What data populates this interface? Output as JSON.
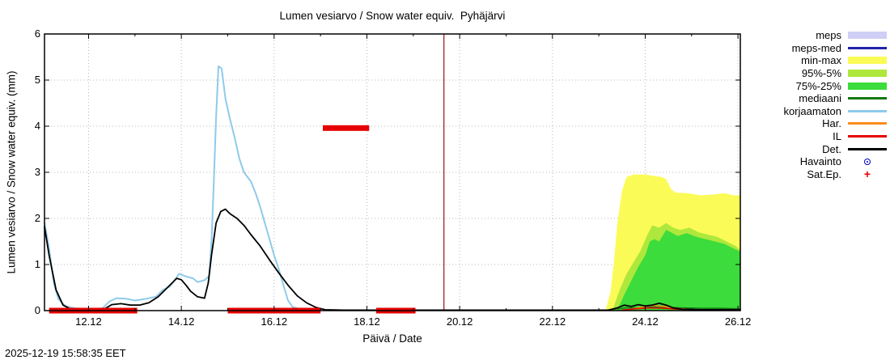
{
  "footer": {
    "timestamp": "2025-12-19 15:58:35 EET"
  },
  "chart_data": {
    "type": "line",
    "title": "Lumen vesiarvo / Snow water equiv.  Pyhäjärvi",
    "xlabel": "Päivä / Date",
    "ylabel": "Lumen vesiarvo / Snow water equiv. (mm)",
    "xlim": [
      11.05,
      26.05
    ],
    "ylim": [
      0,
      6
    ],
    "grid": true,
    "legend_position": "right-outside",
    "xticks": [
      {
        "v": 12,
        "label": "12.12"
      },
      {
        "v": 14,
        "label": "14.12"
      },
      {
        "v": 16,
        "label": "16.12"
      },
      {
        "v": 18,
        "label": "18.12"
      },
      {
        "v": 20,
        "label": "20.12"
      },
      {
        "v": 22,
        "label": "22.12"
      },
      {
        "v": 24,
        "label": "24.12"
      },
      {
        "v": 26,
        "label": "26.12"
      }
    ],
    "yticks": [
      0,
      1,
      2,
      3,
      4,
      5,
      6
    ],
    "now_line": {
      "x": 19.66,
      "color": "#a03232"
    },
    "areas": [
      {
        "name": "min-max",
        "color": "#fbfb57",
        "points": [
          [
            23.15,
            0.02
          ],
          [
            23.25,
            0.4
          ],
          [
            23.32,
            1.0
          ],
          [
            23.4,
            1.9
          ],
          [
            23.5,
            2.6
          ],
          [
            23.6,
            2.9
          ],
          [
            23.75,
            2.95
          ],
          [
            24.0,
            2.95
          ],
          [
            24.2,
            2.92
          ],
          [
            24.35,
            2.9
          ],
          [
            24.45,
            2.85
          ],
          [
            24.55,
            2.65
          ],
          [
            24.65,
            2.56
          ],
          [
            24.9,
            2.55
          ],
          [
            25.2,
            2.5
          ],
          [
            25.5,
            2.52
          ],
          [
            25.7,
            2.55
          ],
          [
            25.9,
            2.5
          ],
          [
            26.05,
            2.5
          ]
        ]
      },
      {
        "name": "95%-5%",
        "color": "#aee83c",
        "points": [
          [
            23.3,
            0.02
          ],
          [
            23.45,
            0.45
          ],
          [
            23.6,
            0.8
          ],
          [
            23.75,
            1.05
          ],
          [
            23.9,
            1.3
          ],
          [
            24.05,
            1.65
          ],
          [
            24.15,
            1.85
          ],
          [
            24.3,
            1.8
          ],
          [
            24.45,
            1.9
          ],
          [
            24.6,
            1.8
          ],
          [
            24.75,
            1.75
          ],
          [
            24.95,
            1.8
          ],
          [
            25.15,
            1.7
          ],
          [
            25.35,
            1.65
          ],
          [
            25.55,
            1.6
          ],
          [
            25.75,
            1.5
          ],
          [
            25.95,
            1.4
          ],
          [
            26.05,
            1.32
          ]
        ]
      },
      {
        "name": "75%-25%",
        "color": "#3bdc3b",
        "points": [
          [
            23.4,
            0.02
          ],
          [
            23.55,
            0.35
          ],
          [
            23.7,
            0.65
          ],
          [
            23.85,
            0.95
          ],
          [
            24.0,
            1.2
          ],
          [
            24.1,
            1.5
          ],
          [
            24.2,
            1.55
          ],
          [
            24.3,
            1.5
          ],
          [
            24.45,
            1.75
          ],
          [
            24.55,
            1.7
          ],
          [
            24.7,
            1.62
          ],
          [
            24.9,
            1.68
          ],
          [
            25.1,
            1.6
          ],
          [
            25.3,
            1.55
          ],
          [
            25.5,
            1.5
          ],
          [
            25.7,
            1.45
          ],
          [
            25.9,
            1.35
          ],
          [
            26.05,
            1.28
          ]
        ]
      }
    ],
    "series": [
      {
        "name": "korjaamaton",
        "color": "#8fcaea",
        "width": 2,
        "points": [
          [
            11.05,
            1.9
          ],
          [
            11.15,
            1.35
          ],
          [
            11.25,
            0.6
          ],
          [
            11.35,
            0.25
          ],
          [
            11.5,
            0.1
          ],
          [
            11.7,
            0.05
          ],
          [
            12.0,
            0.03
          ],
          [
            12.3,
            0.05
          ],
          [
            12.45,
            0.2
          ],
          [
            12.6,
            0.27
          ],
          [
            12.8,
            0.26
          ],
          [
            13.0,
            0.22
          ],
          [
            13.2,
            0.25
          ],
          [
            13.45,
            0.3
          ],
          [
            13.6,
            0.45
          ],
          [
            13.75,
            0.52
          ],
          [
            13.85,
            0.65
          ],
          [
            13.95,
            0.8
          ],
          [
            14.1,
            0.74
          ],
          [
            14.25,
            0.7
          ],
          [
            14.35,
            0.62
          ],
          [
            14.5,
            0.66
          ],
          [
            14.6,
            0.75
          ],
          [
            14.65,
            1.5
          ],
          [
            14.7,
            2.8
          ],
          [
            14.75,
            4.2
          ],
          [
            14.8,
            5.3
          ],
          [
            14.87,
            5.25
          ],
          [
            14.95,
            4.6
          ],
          [
            15.05,
            4.15
          ],
          [
            15.15,
            3.75
          ],
          [
            15.25,
            3.3
          ],
          [
            15.35,
            3.0
          ],
          [
            15.5,
            2.8
          ],
          [
            15.6,
            2.55
          ],
          [
            15.7,
            2.25
          ],
          [
            15.8,
            1.9
          ],
          [
            15.9,
            1.55
          ],
          [
            16.0,
            1.2
          ],
          [
            16.1,
            0.9
          ],
          [
            16.2,
            0.55
          ],
          [
            16.3,
            0.22
          ],
          [
            16.4,
            0.08
          ],
          [
            16.6,
            0.02
          ],
          [
            17.0,
            0.01
          ]
        ]
      },
      {
        "name": "mediaani",
        "color": "#117711",
        "width": 1.5,
        "points": [
          [
            23.2,
            0.01
          ],
          [
            23.4,
            0.04
          ],
          [
            23.6,
            0.06
          ],
          [
            23.9,
            0.06
          ],
          [
            24.2,
            0.08
          ],
          [
            24.5,
            0.07
          ],
          [
            24.8,
            0.06
          ],
          [
            25.2,
            0.05
          ],
          [
            25.6,
            0.05
          ],
          [
            26.05,
            0.04
          ]
        ]
      },
      {
        "name": "Har.",
        "color": "#ff8c1a",
        "width": 1.5,
        "points": [
          [
            23.6,
            0.01
          ],
          [
            23.8,
            0.05
          ],
          [
            24.0,
            0.09
          ],
          [
            24.2,
            0.11
          ],
          [
            24.4,
            0.09
          ],
          [
            24.6,
            0.06
          ],
          [
            24.8,
            0.04
          ],
          [
            25.0,
            0.02
          ],
          [
            26.05,
            0.02
          ]
        ]
      },
      {
        "name": "IL",
        "color": "#e60000",
        "width": 1.5,
        "points": [
          [
            23.5,
            0.01
          ],
          [
            23.8,
            0.04
          ],
          [
            24.1,
            0.06
          ],
          [
            24.4,
            0.05
          ],
          [
            24.7,
            0.03
          ],
          [
            25.0,
            0.02
          ],
          [
            26.05,
            0.02
          ]
        ]
      },
      {
        "name": "Det.",
        "color": "#000000",
        "width": 1.8,
        "points": [
          [
            11.05,
            1.82
          ],
          [
            11.15,
            1.2
          ],
          [
            11.3,
            0.45
          ],
          [
            11.45,
            0.12
          ],
          [
            11.6,
            0.04
          ],
          [
            12.0,
            0.02
          ],
          [
            12.35,
            0.04
          ],
          [
            12.5,
            0.13
          ],
          [
            12.7,
            0.15
          ],
          [
            12.9,
            0.12
          ],
          [
            13.1,
            0.12
          ],
          [
            13.3,
            0.17
          ],
          [
            13.5,
            0.3
          ],
          [
            13.65,
            0.45
          ],
          [
            13.8,
            0.6
          ],
          [
            13.9,
            0.7
          ],
          [
            14.0,
            0.67
          ],
          [
            14.1,
            0.55
          ],
          [
            14.2,
            0.42
          ],
          [
            14.35,
            0.3
          ],
          [
            14.5,
            0.27
          ],
          [
            14.58,
            0.6
          ],
          [
            14.65,
            1.2
          ],
          [
            14.75,
            1.9
          ],
          [
            14.85,
            2.15
          ],
          [
            14.95,
            2.2
          ],
          [
            15.05,
            2.1
          ],
          [
            15.2,
            2.0
          ],
          [
            15.35,
            1.85
          ],
          [
            15.5,
            1.65
          ],
          [
            15.7,
            1.4
          ],
          [
            15.9,
            1.1
          ],
          [
            16.1,
            0.82
          ],
          [
            16.3,
            0.55
          ],
          [
            16.5,
            0.32
          ],
          [
            16.7,
            0.17
          ],
          [
            16.9,
            0.07
          ],
          [
            17.1,
            0.02
          ],
          [
            17.5,
            0.01
          ],
          [
            23.2,
            0.01
          ],
          [
            23.4,
            0.06
          ],
          [
            23.55,
            0.12
          ],
          [
            23.7,
            0.09
          ],
          [
            23.85,
            0.13
          ],
          [
            24.0,
            0.1
          ],
          [
            24.15,
            0.12
          ],
          [
            24.3,
            0.16
          ],
          [
            24.45,
            0.12
          ],
          [
            24.6,
            0.06
          ],
          [
            24.8,
            0.03
          ],
          [
            25.2,
            0.02
          ],
          [
            26.05,
            0.02
          ]
        ]
      }
    ],
    "satep_bars": {
      "color": "#e60000",
      "segments": [
        {
          "x1": 11.15,
          "x2": 13.05,
          "y": 0.0
        },
        {
          "x1": 15.0,
          "x2": 17.0,
          "y": 0.0
        },
        {
          "x1": 17.05,
          "x2": 18.05,
          "y": 3.96
        },
        {
          "x1": 18.2,
          "x2": 19.05,
          "y": 0.0
        }
      ]
    }
  },
  "legend": {
    "items": [
      {
        "label": "meps",
        "swatch": "band",
        "color": "#cfcff5"
      },
      {
        "label": "meps-med",
        "swatch": "line",
        "color": "#2222aa"
      },
      {
        "label": "min-max",
        "swatch": "band",
        "color": "#fbfb57"
      },
      {
        "label": "95%-5%",
        "swatch": "band",
        "color": "#aee83c"
      },
      {
        "label": "75%-25%",
        "swatch": "band",
        "color": "#3bdc3b"
      },
      {
        "label": "mediaani",
        "swatch": "line",
        "color": "#117711"
      },
      {
        "label": "korjaamaton",
        "swatch": "line",
        "color": "#8fcaea"
      },
      {
        "label": "Har.",
        "swatch": "line",
        "color": "#ff8c1a"
      },
      {
        "label": "IL",
        "swatch": "line",
        "color": "#e60000"
      },
      {
        "label": "Det.",
        "swatch": "line",
        "color": "#000000"
      },
      {
        "label": "Havainto",
        "swatch": "point-circle",
        "color": "#0000cc"
      },
      {
        "label": "Sat.Ep.",
        "swatch": "point-plus",
        "color": "#e60000"
      }
    ]
  }
}
